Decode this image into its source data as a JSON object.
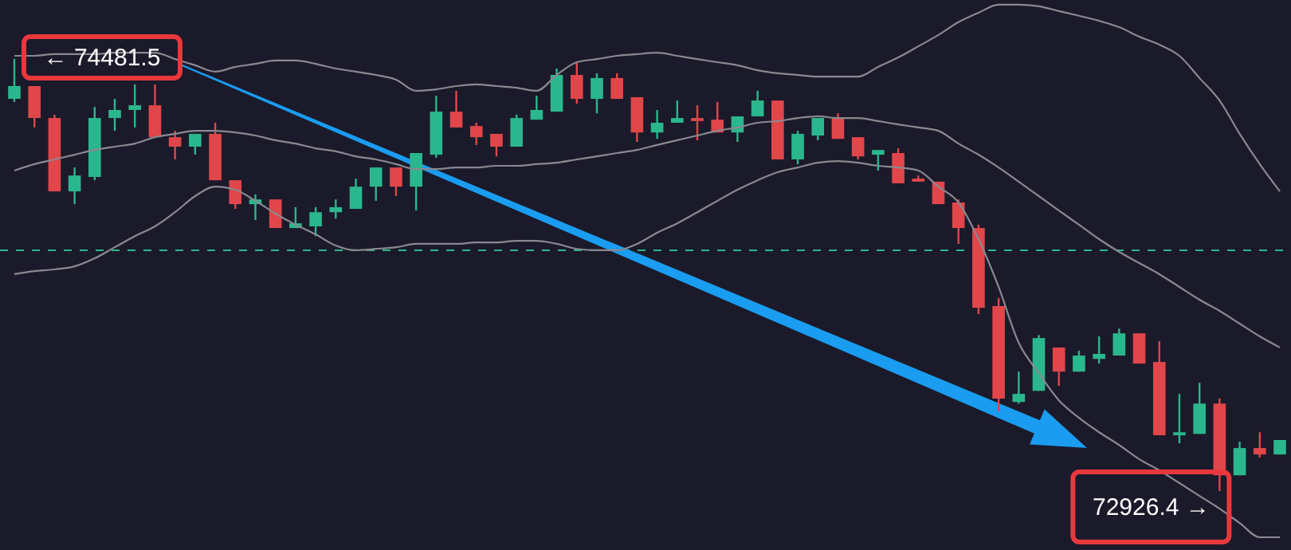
{
  "chart_data": {
    "type": "candlestick",
    "categories": [
      null,
      null,
      null,
      null,
      null,
      null,
      null,
      null,
      null,
      null,
      null,
      null,
      null,
      null,
      null,
      null,
      null,
      null,
      null,
      null,
      null,
      null,
      null,
      null,
      null,
      null,
      null,
      null,
      null,
      null,
      null,
      null,
      null,
      null,
      null,
      null,
      null,
      null,
      null,
      null,
      null,
      null,
      null,
      null,
      null,
      null,
      null,
      null,
      null,
      null,
      null,
      null,
      null,
      null,
      null,
      null,
      null,
      null,
      null,
      null,
      null,
      null,
      null,
      null
    ],
    "ohlc": [
      [
        74338,
        74481.5,
        74327,
        74384
      ],
      [
        74384,
        74384,
        74235,
        74269
      ],
      [
        74269,
        74281,
        74005,
        74005
      ],
      [
        74005,
        74091,
        73959,
        74062
      ],
      [
        74057,
        74309,
        74045,
        74269
      ],
      [
        74269,
        74338,
        74223,
        74298
      ],
      [
        74298,
        74390,
        74235,
        74315
      ],
      [
        74315,
        74390,
        74200,
        74200
      ],
      [
        74200,
        74223,
        74120,
        74166
      ],
      [
        74166,
        74212,
        74137,
        74212
      ],
      [
        74212,
        74252,
        74045,
        74045
      ],
      [
        74045,
        74045,
        73942,
        73959
      ],
      [
        73959,
        73994,
        73902,
        73976
      ],
      [
        73976,
        73976,
        73873,
        73873
      ],
      [
        73873,
        73948,
        73873,
        73890
      ],
      [
        73879,
        73948,
        73844,
        73930
      ],
      [
        73930,
        73976,
        73907,
        73948
      ],
      [
        73942,
        74051,
        73942,
        74022
      ],
      [
        74022,
        74091,
        73971,
        74091
      ],
      [
        74091,
        74091,
        73988,
        74022
      ],
      [
        74022,
        74143,
        73936,
        74143
      ],
      [
        74137,
        74349,
        74126,
        74292
      ],
      [
        74292,
        74367,
        74235,
        74235
      ],
      [
        74240,
        74252,
        74172,
        74200
      ],
      [
        74212,
        74212,
        74131,
        74166
      ],
      [
        74166,
        74281,
        74166,
        74269
      ],
      [
        74263,
        74349,
        74263,
        74298
      ],
      [
        74292,
        74447,
        74292,
        74424
      ],
      [
        74424,
        74470,
        74321,
        74338
      ],
      [
        74338,
        74430,
        74286,
        74413
      ],
      [
        74413,
        74430,
        74338,
        74338
      ],
      [
        74344,
        74344,
        74183,
        74217
      ],
      [
        74217,
        74298,
        74194,
        74252
      ],
      [
        74252,
        74332,
        74252,
        74269
      ],
      [
        74269,
        74315,
        74189,
        74258
      ],
      [
        74263,
        74327,
        74217,
        74217
      ],
      [
        74217,
        74275,
        74183,
        74275
      ],
      [
        74275,
        74367,
        74275,
        74332
      ],
      [
        74332,
        74332,
        74120,
        74120
      ],
      [
        74120,
        74223,
        74103,
        74212
      ],
      [
        74206,
        74269,
        74189,
        74269
      ],
      [
        74269,
        74286,
        74194,
        74194
      ],
      [
        74200,
        74200,
        74120,
        74131
      ],
      [
        74137,
        74154,
        74080,
        74154
      ],
      [
        74143,
        74160,
        74034,
        74034
      ],
      [
        74051,
        74062,
        74040,
        74040
      ],
      [
        74040,
        74040,
        73959,
        73959
      ],
      [
        73965,
        73976,
        73816,
        73873
      ],
      [
        73873,
        73885,
        73563,
        73586
      ],
      [
        73592,
        73621,
        73213,
        73259
      ],
      [
        73247,
        73356,
        73241,
        73276
      ],
      [
        73287,
        73488,
        73287,
        73477
      ],
      [
        73443,
        73443,
        73305,
        73356
      ],
      [
        73356,
        73431,
        73356,
        73414
      ],
      [
        73402,
        73483,
        73385,
        73420
      ],
      [
        73414,
        73511,
        73414,
        73494
      ],
      [
        73494,
        73494,
        73385,
        73385
      ],
      [
        73391,
        73466,
        73127,
        73127
      ],
      [
        73127,
        73276,
        73098,
        73138
      ],
      [
        73132,
        73316,
        73132,
        73241
      ],
      [
        73241,
        73259,
        72926.4,
        72983
      ],
      [
        72983,
        73104,
        72983,
        73081
      ],
      [
        73081,
        73138,
        73047,
        73058
      ],
      [
        73058,
        73110,
        73058,
        73110
      ]
    ],
    "colors": [
      "#2bb78d",
      "#e0464a",
      "#e0464a",
      "#2bb78d",
      "#2bb78d",
      "#2bb78d",
      "#2bb78d",
      "#e0464a",
      "#e0464a",
      "#2bb78d",
      "#e0464a",
      "#e0464a",
      "#2bb78d",
      "#e0464a",
      "#2bb78d",
      "#2bb78d",
      "#2bb78d",
      "#2bb78d",
      "#2bb78d",
      "#e0464a",
      "#2bb78d",
      "#2bb78d",
      "#e0464a",
      "#e0464a",
      "#e0464a",
      "#2bb78d",
      "#2bb78d",
      "#2bb78d",
      "#e0464a",
      "#2bb78d",
      "#e0464a",
      "#e0464a",
      "#2bb78d",
      "#2bb78d",
      "#e0464a",
      "#e0464a",
      "#2bb78d",
      "#2bb78d",
      "#e0464a",
      "#2bb78d",
      "#2bb78d",
      "#e0464a",
      "#e0464a",
      "#2bb78d",
      "#e0464a",
      "#e0464a",
      "#e0464a",
      "#e0464a",
      "#e0464a",
      "#e0464a",
      "#2bb78d",
      "#2bb78d",
      "#e0464a",
      "#2bb78d",
      "#2bb78d",
      "#2bb78d",
      "#e0464a",
      "#e0464a",
      "#2bb78d",
      "#2bb78d",
      "#e0464a",
      "#2bb78d",
      "#e0464a",
      "#2bb78d"
    ],
    "series": [
      {
        "type": "line",
        "color": "#8a8890",
        "values": [
          74493,
          74493,
          74499,
          74499,
          74499,
          74504,
          74504,
          74504,
          74481,
          74459,
          74436,
          74453,
          74464,
          74476,
          74476,
          74464,
          74447,
          74436,
          74424,
          74407,
          74367,
          74372,
          74384,
          74390,
          74384,
          74378,
          74367,
          74424,
          74470,
          74481,
          74493,
          74499,
          74504,
          74493,
          74481,
          74470,
          74459,
          74441,
          74430,
          74424,
          74418,
          74418,
          74418,
          74453,
          74487,
          74527,
          74568,
          74614,
          74648,
          74677,
          74677,
          74671,
          74654,
          74637,
          74619,
          74596,
          74562,
          74533,
          74493,
          74413,
          74332,
          74212,
          74103,
          74005
        ]
      },
      {
        "type": "line",
        "color": "#8a8890",
        "values": [
          74080,
          74103,
          74120,
          74137,
          74154,
          74166,
          74177,
          74200,
          74212,
          74223,
          74223,
          74217,
          74206,
          74189,
          74177,
          74160,
          74149,
          74131,
          74120,
          74103,
          74085,
          74085,
          74091,
          74091,
          74097,
          74097,
          74103,
          74108,
          74120,
          74131,
          74143,
          74154,
          74172,
          74189,
          74206,
          74223,
          74235,
          74252,
          74258,
          74269,
          74275,
          74269,
          74269,
          74258,
          74246,
          74235,
          74223,
          74177,
          74137,
          74091,
          74040,
          73988,
          73936,
          73885,
          73833,
          73787,
          73747,
          73707,
          73661,
          73615,
          73575,
          73529,
          73483,
          73443
        ]
      },
      {
        "type": "line",
        "color": "#8a8890",
        "values": [
          73707,
          73718,
          73724,
          73735,
          73764,
          73804,
          73844,
          73879,
          73930,
          73988,
          74022,
          74011,
          73971,
          73925,
          73885,
          73850,
          73810,
          73793,
          73798,
          73804,
          73816,
          73816,
          73816,
          73821,
          73821,
          73827,
          73827,
          73816,
          73798,
          73793,
          73793,
          73816,
          73856,
          73890,
          73930,
          73971,
          74011,
          74045,
          74074,
          74091,
          74108,
          74114,
          74108,
          74097,
          74091,
          74080,
          74022,
          73965,
          73833,
          73661,
          73460,
          73351,
          73253,
          73190,
          73138,
          73092,
          73041,
          73001,
          72955,
          72909,
          72863,
          72811,
          72760,
          72760
        ]
      }
    ],
    "ref_lines": [
      {
        "axis": "y",
        "value": 73793,
        "color": "#2bb78d",
        "line_style": "dashed"
      }
    ],
    "annotations": [
      "← 74481.5",
      "72926.4 →"
    ]
  }
}
